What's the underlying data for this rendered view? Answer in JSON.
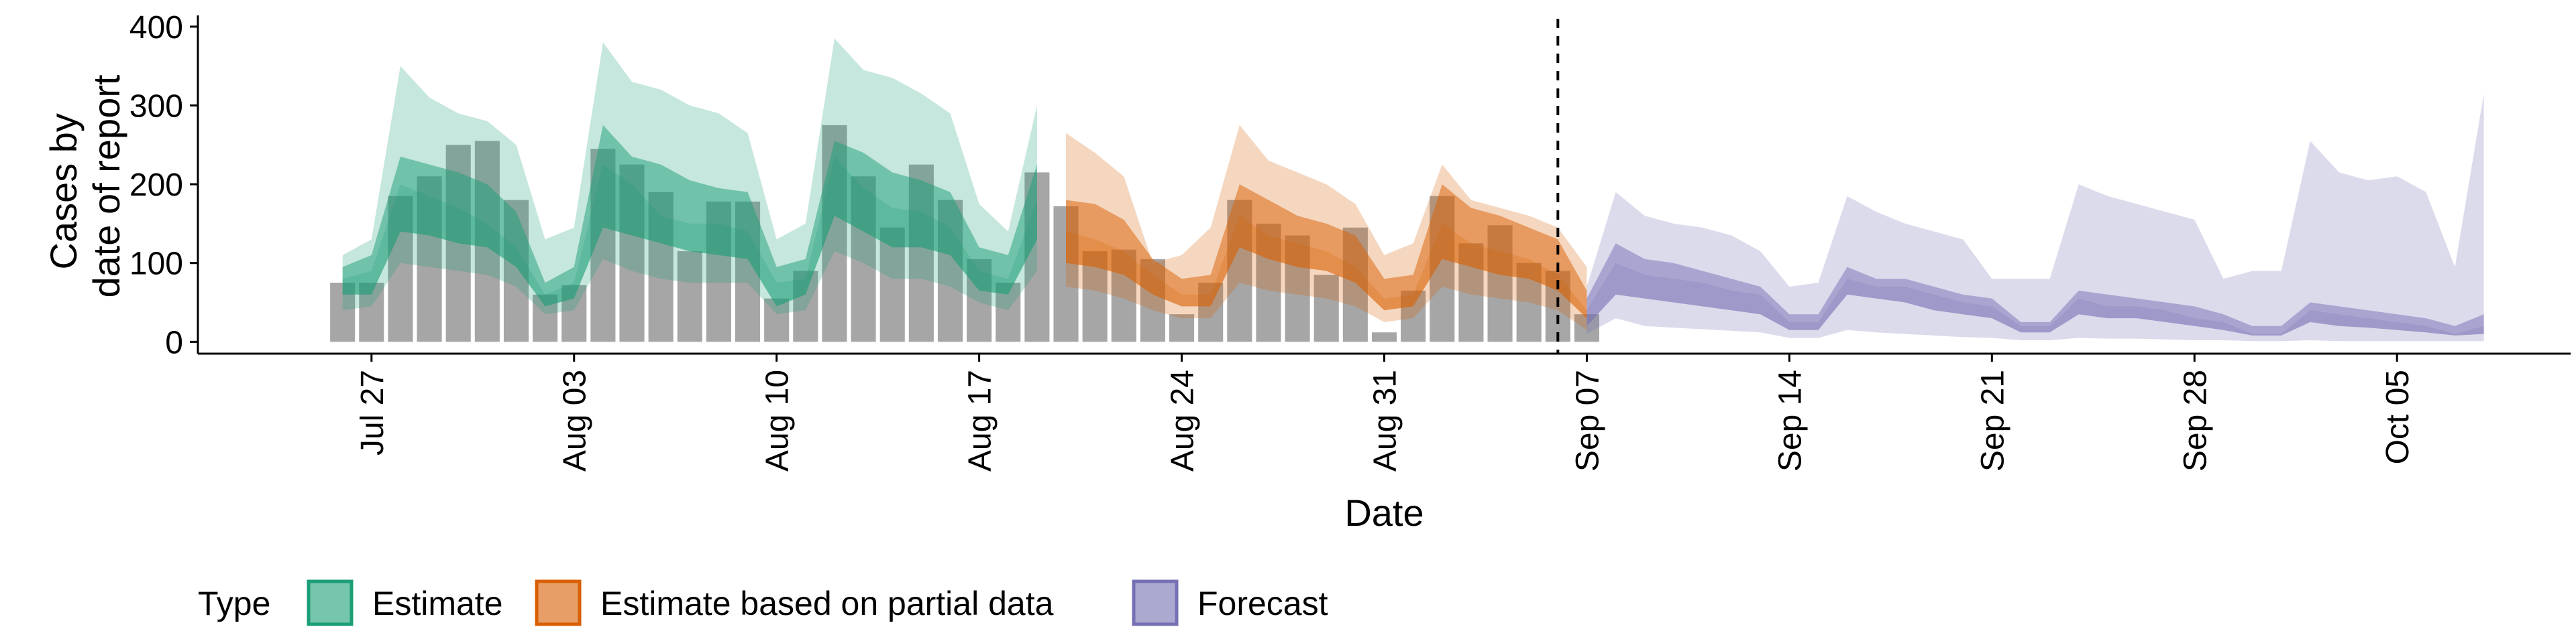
{
  "chart_data": {
    "type": "area",
    "xlabel": "Date",
    "ylabel_lines": [
      "Cases by",
      "date of report"
    ],
    "ylim": [
      -15,
      410
    ],
    "xlim_dates": [
      "2020-07-21",
      "2020-10-11"
    ],
    "y_ticks": [
      0,
      100,
      200,
      300,
      400
    ],
    "x_ticks": [
      {
        "date": "2020-07-27",
        "label": "Jul 27"
      },
      {
        "date": "2020-08-03",
        "label": "Aug 03"
      },
      {
        "date": "2020-08-10",
        "label": "Aug 10"
      },
      {
        "date": "2020-08-17",
        "label": "Aug 17"
      },
      {
        "date": "2020-08-24",
        "label": "Aug 24"
      },
      {
        "date": "2020-08-31",
        "label": "Aug 31"
      },
      {
        "date": "2020-09-07",
        "label": "Sep 07"
      },
      {
        "date": "2020-09-14",
        "label": "Sep 14"
      },
      {
        "date": "2020-09-21",
        "label": "Sep 21"
      },
      {
        "date": "2020-09-28",
        "label": "Sep 28"
      },
      {
        "date": "2020-10-05",
        "label": "Oct 05"
      }
    ],
    "reference_line_date": "2020-09-06",
    "legend": {
      "title": "Type",
      "position": "bottom",
      "entries": [
        {
          "label": "Estimate",
          "fill": "#1b9e77",
          "stroke": "#1b9e77"
        },
        {
          "label": "Estimate based on partial data",
          "fill": "#d95f02",
          "stroke": "#d95f02"
        },
        {
          "label": "Forecast",
          "fill": "#7570b3",
          "stroke": "#7570b3"
        }
      ]
    },
    "reported_cases": {
      "color": "#a6a6a6",
      "start_date": "2020-07-26",
      "values": [
        75,
        75,
        185,
        210,
        250,
        255,
        180,
        60,
        72,
        245,
        225,
        190,
        115,
        178,
        178,
        55,
        90,
        275,
        210,
        145,
        225,
        180,
        105,
        75,
        215,
        172,
        115,
        117,
        105,
        35,
        75,
        180,
        150,
        135,
        85,
        145,
        12,
        65,
        185,
        125,
        148,
        100,
        90,
        35
      ]
    },
    "series": [
      {
        "name": "Estimate",
        "color": "#1b9e77",
        "start_date": "2020-07-26",
        "outer_lower": [
          40,
          45,
          100,
          95,
          90,
          85,
          70,
          35,
          40,
          105,
          90,
          80,
          75,
          75,
          75,
          35,
          40,
          115,
          100,
          80,
          80,
          70,
          50,
          40,
          90
        ],
        "inner_lower": [
          60,
          60,
          140,
          135,
          125,
          120,
          95,
          45,
          55,
          145,
          135,
          125,
          115,
          110,
          105,
          45,
          60,
          160,
          140,
          120,
          120,
          110,
          65,
          60,
          130
        ],
        "median": [
          80,
          90,
          200,
          185,
          170,
          150,
          120,
          60,
          75,
          225,
          200,
          160,
          150,
          150,
          140,
          75,
          80,
          235,
          195,
          170,
          165,
          145,
          90,
          80,
          180
        ],
        "inner_upper": [
          95,
          110,
          235,
          225,
          215,
          200,
          165,
          75,
          95,
          275,
          235,
          225,
          205,
          195,
          190,
          95,
          105,
          255,
          240,
          215,
          205,
          190,
          120,
          110,
          225
        ],
        "outer_upper": [
          110,
          130,
          350,
          310,
          290,
          280,
          250,
          130,
          145,
          380,
          330,
          320,
          300,
          290,
          265,
          130,
          150,
          385,
          345,
          335,
          315,
          290,
          175,
          140,
          300
        ]
      },
      {
        "name": "Estimate based on partial data",
        "color": "#d95f02",
        "start_date": "2020-08-20",
        "outer_lower": [
          70,
          65,
          55,
          40,
          30,
          30,
          75,
          65,
          60,
          55,
          45,
          25,
          30,
          70,
          60,
          55,
          50,
          40,
          15
        ],
        "inner_lower": [
          100,
          95,
          85,
          60,
          45,
          45,
          120,
          105,
          95,
          90,
          75,
          40,
          45,
          105,
          95,
          85,
          80,
          65,
          30
        ],
        "median": [
          140,
          130,
          115,
          85,
          60,
          60,
          160,
          135,
          125,
          115,
          95,
          55,
          60,
          150,
          125,
          115,
          105,
          85,
          40
        ],
        "inner_upper": [
          180,
          175,
          155,
          105,
          80,
          85,
          200,
          180,
          160,
          150,
          135,
          80,
          85,
          200,
          170,
          160,
          145,
          130,
          65
        ],
        "outer_upper": [
          265,
          240,
          210,
          100,
          110,
          145,
          275,
          230,
          215,
          200,
          175,
          110,
          125,
          225,
          180,
          170,
          160,
          145,
          95
        ]
      },
      {
        "name": "Forecast",
        "color": "#7570b3",
        "start_date": "2020-09-07",
        "outer_lower": [
          10,
          30,
          20,
          18,
          16,
          14,
          12,
          5,
          5,
          15,
          12,
          10,
          8,
          6,
          5,
          2,
          2,
          5,
          4,
          4,
          3,
          2,
          2,
          1,
          1,
          2,
          1,
          1,
          1,
          1,
          1,
          1
        ],
        "inner_lower": [
          20,
          60,
          55,
          50,
          45,
          40,
          35,
          15,
          15,
          60,
          55,
          50,
          40,
          35,
          30,
          12,
          12,
          35,
          30,
          30,
          25,
          20,
          15,
          8,
          8,
          25,
          20,
          18,
          15,
          12,
          8,
          10
        ],
        "median": [
          40,
          100,
          85,
          80,
          75,
          65,
          60,
          25,
          25,
          80,
          70,
          70,
          60,
          50,
          45,
          20,
          20,
          55,
          45,
          45,
          40,
          30,
          25,
          10,
          10,
          40,
          35,
          30,
          25,
          20,
          10,
          20
        ],
        "inner_upper": [
          55,
          125,
          105,
          100,
          90,
          80,
          70,
          35,
          35,
          95,
          80,
          80,
          70,
          60,
          55,
          25,
          25,
          65,
          60,
          55,
          50,
          45,
          35,
          20,
          20,
          50,
          45,
          40,
          35,
          30,
          20,
          35
        ],
        "outer_upper": [
          70,
          190,
          160,
          150,
          145,
          135,
          115,
          70,
          75,
          185,
          165,
          150,
          140,
          130,
          80,
          80,
          80,
          200,
          185,
          175,
          165,
          155,
          80,
          90,
          90,
          255,
          215,
          205,
          210,
          190,
          95,
          315
        ]
      }
    ]
  }
}
